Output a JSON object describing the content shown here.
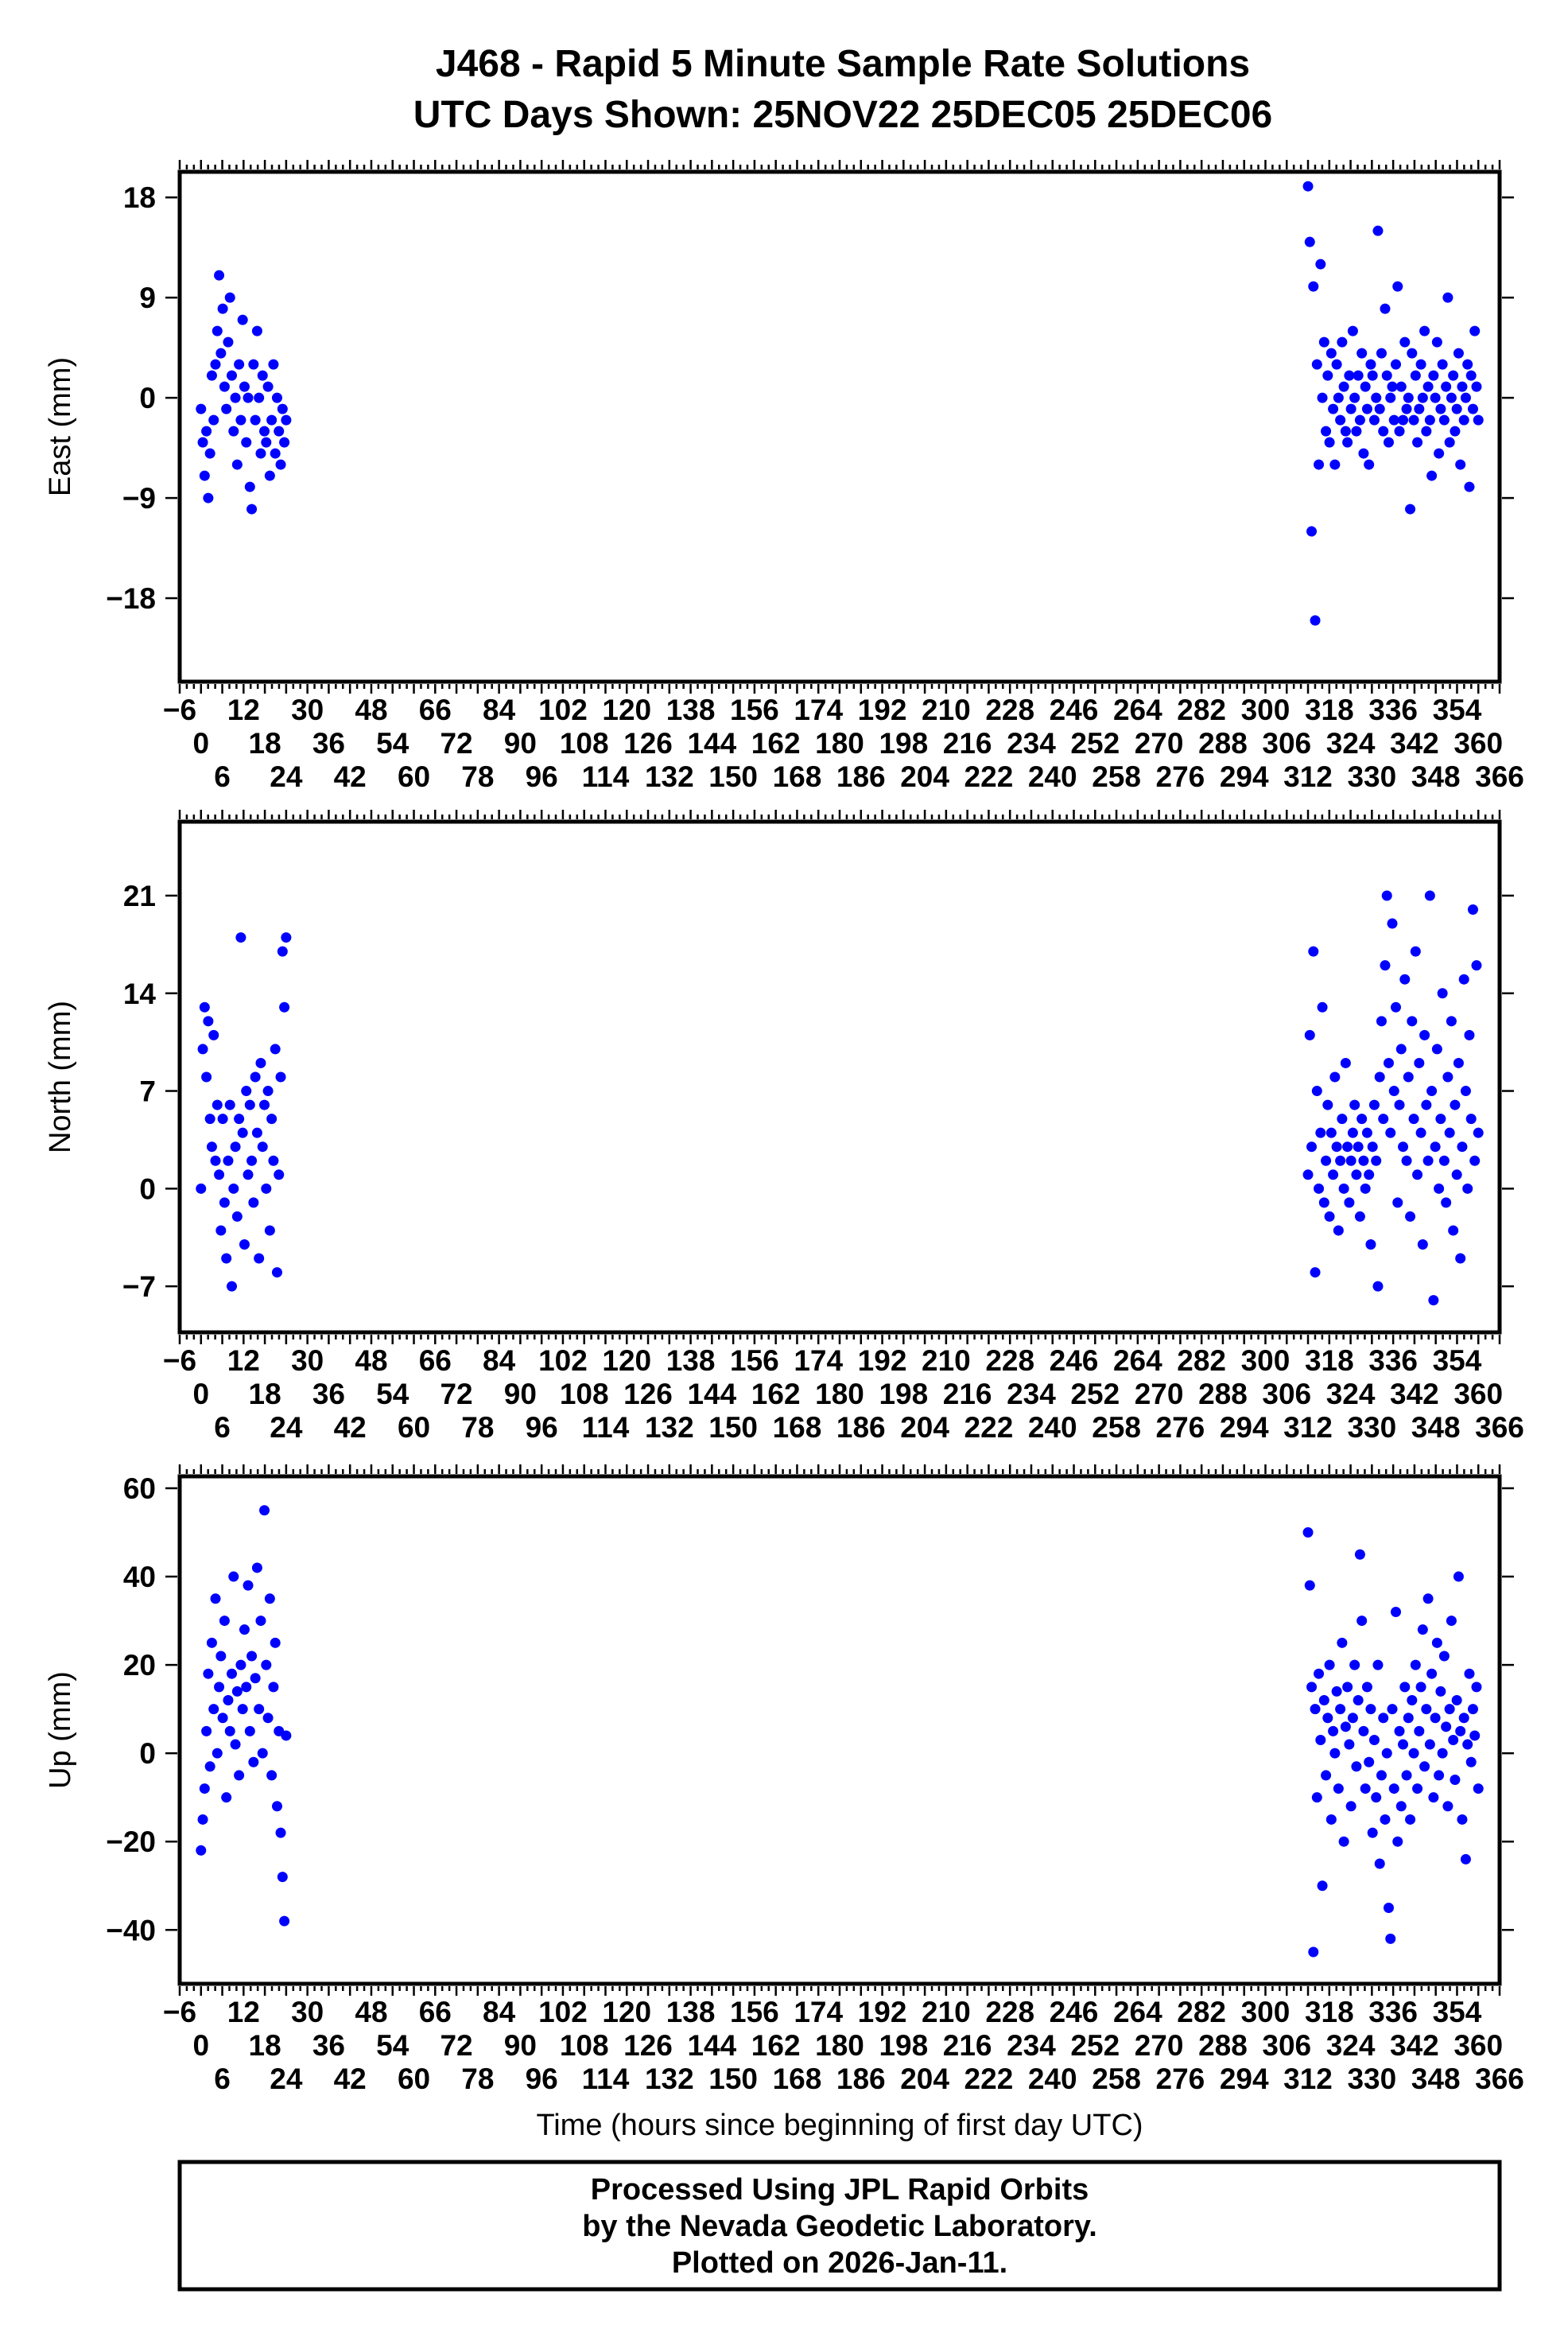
{
  "title": {
    "line1": "J468 - Rapid 5 Minute Sample Rate Solutions",
    "line2": "UTC Days Shown:  25NOV22 25DEC05 25DEC06"
  },
  "footer": {
    "line1": "Processed Using JPL Rapid Orbits",
    "line2": "by the Nevada Geodetic Laboratory.",
    "line3": "Plotted on 2026-Jan-11."
  },
  "colors": {
    "points": "#0000ff",
    "axes": "#000000"
  },
  "chart_data": {
    "type": "scatter",
    "xlabel": "Time (hours since beginning of first day UTC)",
    "xlim": [
      -6,
      366
    ],
    "x_tick_step": 6,
    "x_minor_step": 2,
    "grid": false,
    "panels": [
      {
        "name": "east",
        "ylabel": "East (mm)",
        "ylim": [
          -25.5,
          20.3
        ],
        "yticks": [
          18,
          9,
          0,
          -9,
          -18
        ],
        "segments": [
          {
            "x_start": 0,
            "x_end": 24,
            "y": [
              -1,
              -4,
              -7,
              -3,
              -9,
              -5,
              2,
              -2,
              3,
              6,
              11,
              4,
              8,
              1,
              -1,
              5,
              9,
              2,
              -3,
              0,
              -6,
              3,
              -2,
              7,
              1,
              -4,
              0,
              -8,
              -10,
              3,
              -2,
              6,
              0,
              -5,
              2,
              -3,
              -4,
              1,
              -7,
              -2,
              3,
              -5,
              0,
              -3,
              -6,
              -1,
              -4,
              -2
            ]
          },
          {
            "x_start": 312,
            "x_end": 360,
            "y": [
              19,
              14,
              -12,
              10,
              -20,
              3,
              -6,
              12,
              0,
              5,
              -3,
              2,
              -4,
              4,
              -1,
              -6,
              3,
              0,
              -2,
              5,
              1,
              -3,
              -4,
              2,
              -1,
              6,
              0,
              -3,
              2,
              -2,
              4,
              -5,
              1,
              -1,
              -6,
              3,
              2,
              -2,
              0,
              15,
              -1,
              4,
              -3,
              8,
              2,
              -4,
              0,
              1,
              -2,
              3,
              10,
              -3,
              1,
              -2,
              5,
              -1,
              0,
              -10,
              4,
              -2,
              2,
              -4,
              -1,
              3,
              0,
              6,
              -3,
              1,
              -2,
              -7,
              2,
              0,
              5,
              -5,
              -1,
              3,
              -2,
              1,
              9,
              -4,
              0,
              2,
              -3,
              -1,
              4,
              -6,
              1,
              -2,
              0,
              3,
              -8,
              2,
              -1,
              6,
              1,
              -2
            ]
          }
        ]
      },
      {
        "name": "north",
        "ylabel": "North (mm)",
        "ylim": [
          -10.3,
          26.3
        ],
        "yticks": [
          21,
          14,
          7,
          0,
          -7
        ],
        "segments": [
          {
            "x_start": 0,
            "x_end": 24,
            "y": [
              0,
              10,
              13,
              8,
              12,
              5,
              3,
              11,
              2,
              6,
              1,
              -3,
              5,
              -1,
              -5,
              2,
              6,
              -7,
              0,
              3,
              -2,
              5,
              18,
              4,
              -4,
              7,
              1,
              6,
              2,
              -1,
              8,
              4,
              -5,
              9,
              3,
              6,
              0,
              7,
              -3,
              5,
              2,
              10,
              -6,
              1,
              8,
              17,
              13,
              18
            ]
          },
          {
            "x_start": 312,
            "x_end": 360,
            "y": [
              1,
              11,
              3,
              17,
              -6,
              7,
              0,
              4,
              13,
              -1,
              2,
              6,
              -2,
              4,
              1,
              8,
              3,
              -3,
              2,
              5,
              0,
              9,
              3,
              -1,
              2,
              4,
              6,
              1,
              3,
              -2,
              5,
              2,
              0,
              4,
              1,
              -4,
              3,
              6,
              2,
              -7,
              8,
              12,
              5,
              16,
              21,
              9,
              4,
              19,
              7,
              13,
              -1,
              6,
              10,
              3,
              15,
              2,
              8,
              -2,
              12,
              5,
              17,
              1,
              9,
              4,
              -4,
              11,
              6,
              2,
              21,
              7,
              -8,
              3,
              10,
              0,
              5,
              14,
              2,
              -1,
              8,
              4,
              12,
              -3,
              6,
              1,
              9,
              -5,
              3,
              15,
              7,
              0,
              11,
              5,
              20,
              2,
              16,
              4
            ]
          }
        ]
      },
      {
        "name": "up",
        "ylabel": "Up (mm)",
        "ylim": [
          -52.2,
          62.7
        ],
        "yticks": [
          60,
          40,
          20,
          0,
          -20,
          -40
        ],
        "segments": [
          {
            "x_start": 0,
            "x_end": 24,
            "y": [
              -22,
              -15,
              -8,
              5,
              18,
              -3,
              25,
              10,
              35,
              0,
              15,
              22,
              8,
              30,
              -10,
              12,
              5,
              18,
              40,
              2,
              14,
              -5,
              20,
              10,
              28,
              15,
              38,
              5,
              22,
              -2,
              17,
              42,
              10,
              30,
              0,
              55,
              20,
              8,
              35,
              -5,
              15,
              25,
              -12,
              5,
              -18,
              -28,
              -38,
              4
            ]
          },
          {
            "x_start": 312,
            "x_end": 360,
            "y": [
              50,
              38,
              15,
              -45,
              10,
              -10,
              18,
              3,
              -30,
              12,
              -5,
              8,
              20,
              -15,
              5,
              0,
              14,
              -8,
              10,
              25,
              -20,
              6,
              15,
              2,
              -12,
              8,
              20,
              -3,
              12,
              45,
              30,
              5,
              -8,
              15,
              -2,
              10,
              -18,
              3,
              -10,
              20,
              -25,
              -5,
              8,
              -15,
              0,
              -35,
              -42,
              10,
              -8,
              32,
              -20,
              5,
              -12,
              2,
              15,
              -5,
              8,
              -15,
              12,
              0,
              20,
              -8,
              5,
              15,
              28,
              -3,
              10,
              35,
              2,
              18,
              -10,
              8,
              25,
              -5,
              14,
              0,
              22,
              6,
              -12,
              10,
              30,
              3,
              -6,
              12,
              40,
              5,
              -15,
              8,
              -24,
              2,
              18,
              -2,
              10,
              4,
              15,
              -8
            ]
          }
        ]
      }
    ]
  }
}
